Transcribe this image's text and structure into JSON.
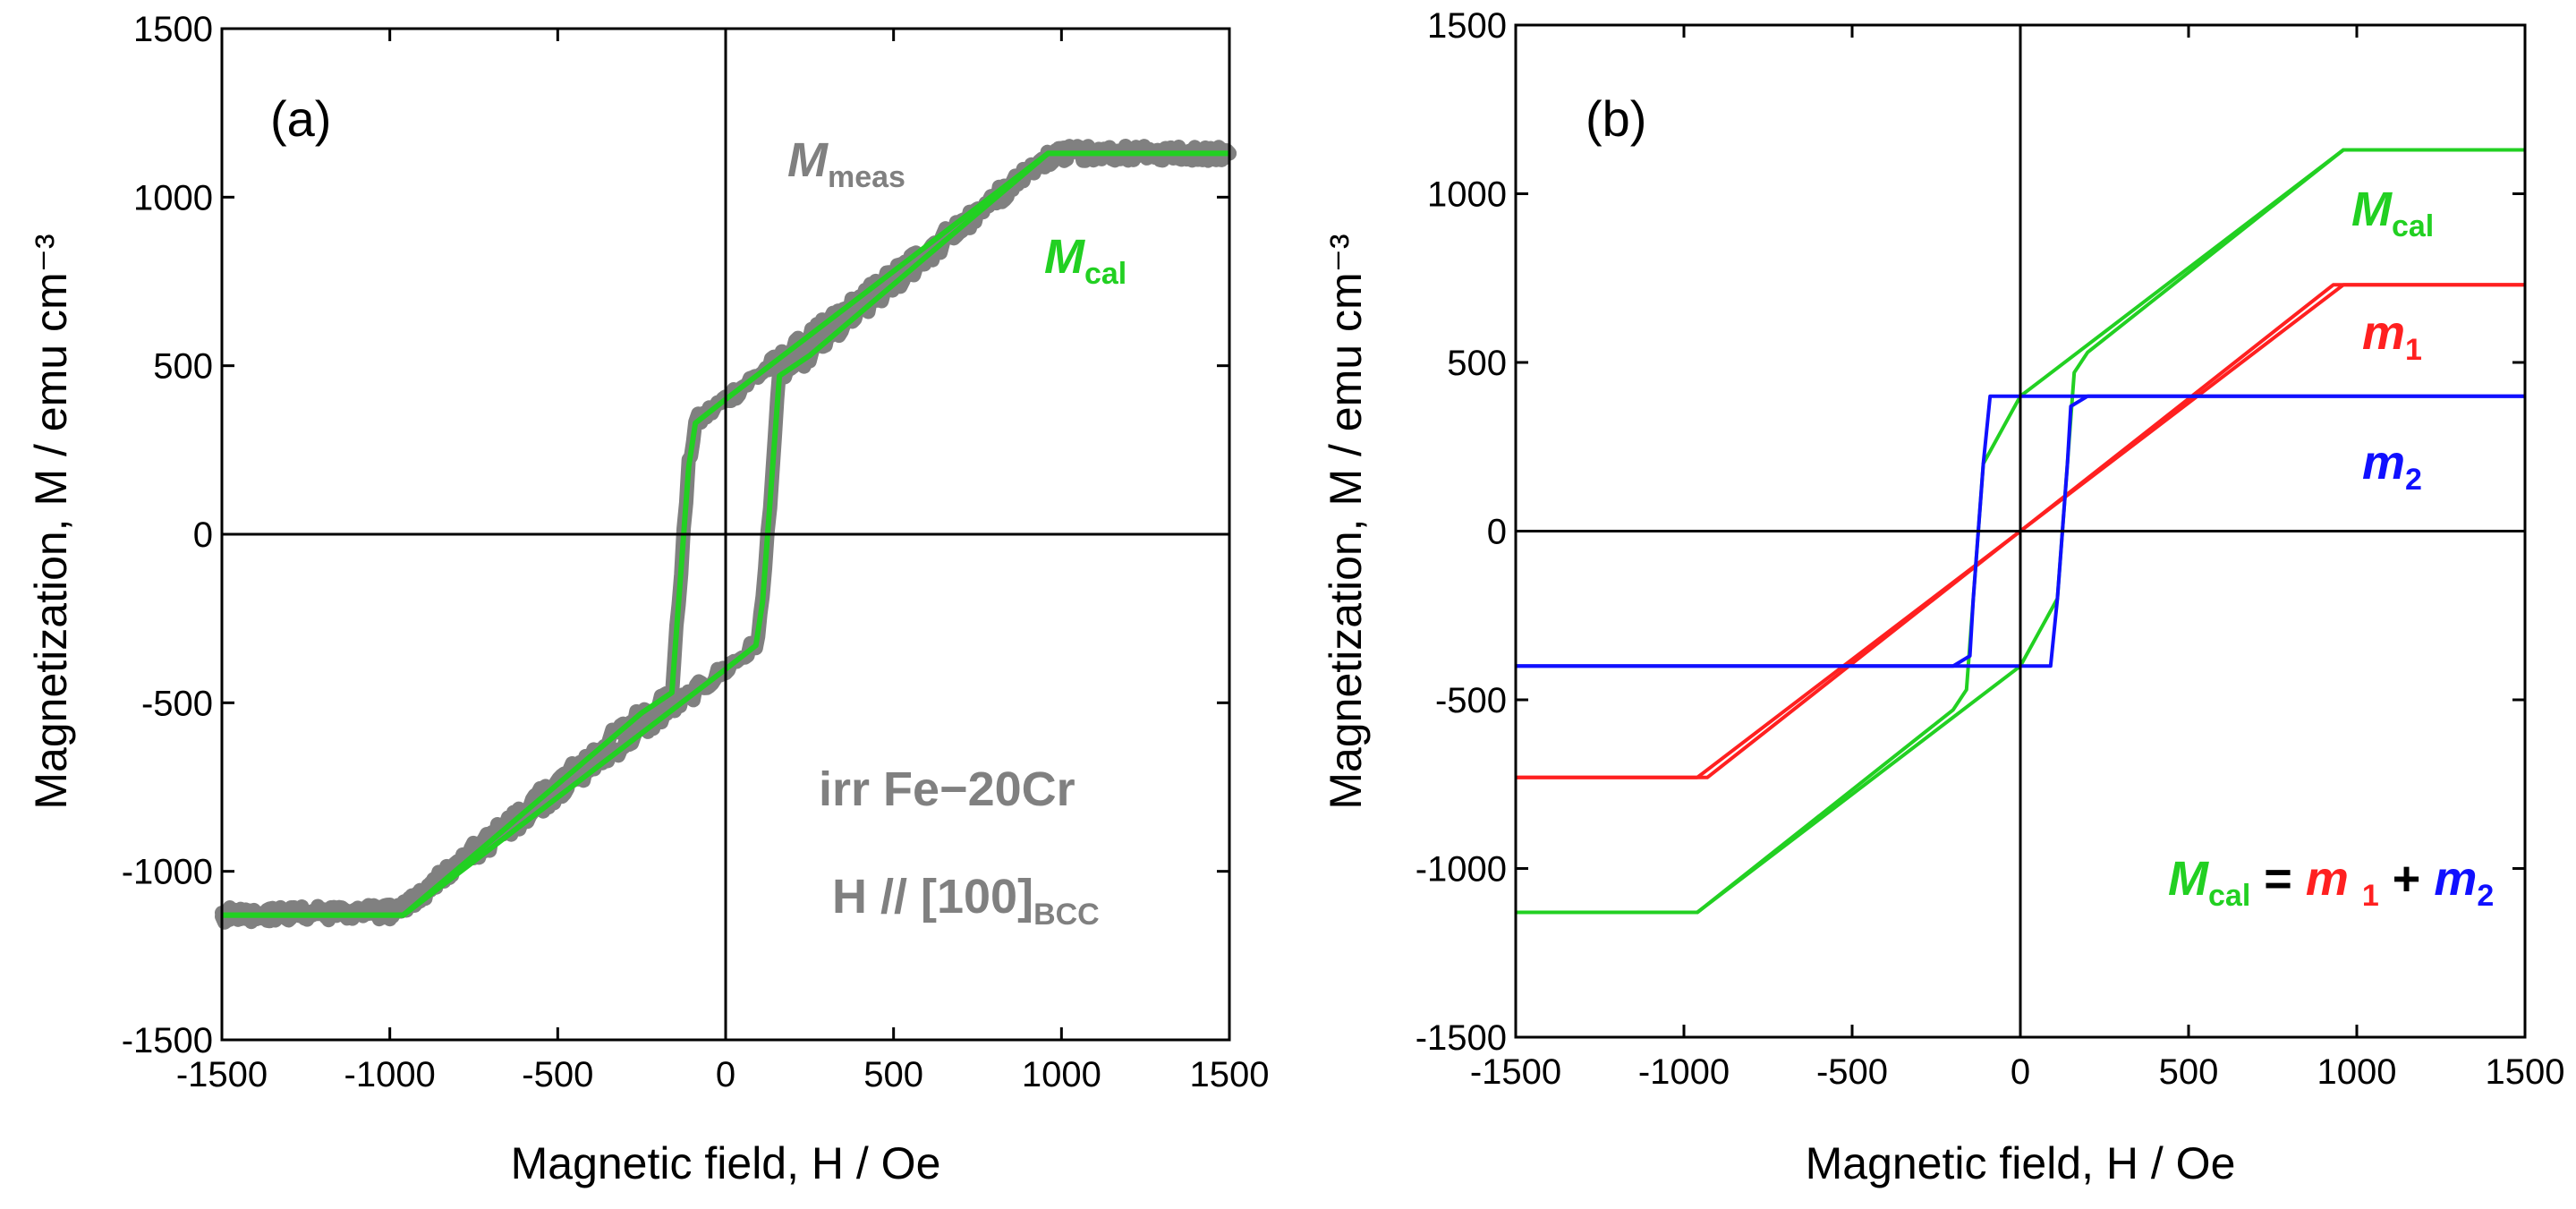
{
  "figure": {
    "colors": {
      "meas": "#808080",
      "cal": "#22d022",
      "m1": "#ff2020",
      "m2": "#1010ff",
      "axis": "#000000"
    },
    "panels": [
      {
        "label": "(a)",
        "xlabel": "Magnetic field, H / Oe",
        "ylabel": "Magnetization, M / emu cm⁻³",
        "annotations": {
          "meas_label": {
            "main": "M",
            "sub": "meas"
          },
          "cal_label": {
            "main": "M",
            "sub": "cal"
          },
          "sample_line1": "irr Fe−20Cr",
          "sample_line2_main": "H // [100]",
          "sample_line2_sub": "BCC"
        }
      },
      {
        "label": "(b)",
        "xlabel": "Magnetic field, H / Oe",
        "ylabel": "Magnetization, M / emu cm⁻³",
        "annotations": {
          "cal_label": {
            "main": "M",
            "sub": "cal"
          },
          "m1_label": {
            "main": "m",
            "sub": "1"
          },
          "m2_label": {
            "main": "m",
            "sub": "2"
          },
          "equation": {
            "lhs_main": "M",
            "lhs_sub": "cal",
            "eq": " = ",
            "t1_main": "m ",
            "t1_sub": "1",
            "plus": " + ",
            "t2_main": "m",
            "t2_sub": "2"
          }
        }
      }
    ]
  },
  "chart_data": [
    {
      "type": "line",
      "title": "(a)",
      "xlabel": "Magnetic field, H / Oe",
      "ylabel": "Magnetization, M / emu cm⁻³",
      "xlim": [
        -1500,
        1500
      ],
      "ylim": [
        -1500,
        1500
      ],
      "xticks": [
        -1500,
        -1000,
        -500,
        0,
        500,
        1000,
        1500
      ],
      "yticks": [
        -1500,
        -1000,
        -500,
        0,
        500,
        1000,
        1500
      ],
      "xtick_labels": [
        "-1500",
        "-1000",
        "-500",
        "0",
        "500",
        "1000",
        "1500"
      ],
      "ytick_labels": [
        "-1500",
        "-1000",
        "-500",
        "0",
        "500",
        "1000",
        "1500"
      ],
      "series": [
        {
          "name": "M_meas",
          "color": "#808080",
          "style": "thick-noisy",
          "branches": [
            {
              "x": [
                -1500,
                -1000,
                -950,
                -250,
                -160,
                -140,
                -125,
                -110,
                -90,
                0,
                950,
                1000,
                1500
              ],
              "y": [
                -1130,
                -1120,
                -1100,
                -530,
                -470,
                -200,
                0,
                200,
                330,
                400,
                1110,
                1130,
                1130
              ]
            },
            {
              "x": [
                -1500,
                -1000,
                -950,
                0,
                90,
                110,
                125,
                140,
                160,
                250,
                950,
                1000,
                1500
              ],
              "y": [
                -1130,
                -1120,
                -1100,
                -400,
                -330,
                -200,
                0,
                200,
                470,
                530,
                1110,
                1130,
                1130
              ]
            }
          ]
        },
        {
          "name": "M_cal",
          "color": "#22d022",
          "style": "line",
          "branches": [
            {
              "x": [
                -1500,
                -960,
                -250,
                -160,
                -140,
                -125,
                -110,
                -90,
                0,
                960,
                1500
              ],
              "y": [
                -1130,
                -1130,
                -530,
                -470,
                -200,
                0,
                200,
                330,
                400,
                1130,
                1130
              ]
            },
            {
              "x": [
                -1500,
                -960,
                0,
                90,
                110,
                125,
                140,
                160,
                250,
                960,
                1500
              ],
              "y": [
                -1130,
                -1130,
                -400,
                -330,
                -200,
                0,
                200,
                470,
                530,
                1130,
                1130
              ]
            }
          ]
        }
      ]
    },
    {
      "type": "line",
      "title": "(b)",
      "xlabel": "Magnetic field, H / Oe",
      "ylabel": "Magnetization, M / emu cm⁻³",
      "xlim": [
        -1500,
        1500
      ],
      "ylim": [
        -1500,
        1500
      ],
      "xticks": [
        -1500,
        -1000,
        -500,
        0,
        500,
        1000,
        1500
      ],
      "yticks": [
        -1500,
        -1000,
        -500,
        0,
        500,
        1000,
        1500
      ],
      "xtick_labels": [
        "-1500",
        "-1000",
        "-500",
        "0",
        "500",
        "1000",
        "1500"
      ],
      "ytick_labels": [
        "-1500",
        "-1000",
        "-500",
        "0",
        "500",
        "1000",
        "1500"
      ],
      "series": [
        {
          "name": "M_cal",
          "color": "#22d022",
          "style": "line",
          "branches": [
            {
              "x": [
                -1500,
                -960,
                -200,
                -160,
                -140,
                -125,
                -110,
                0,
                960,
                1500
              ],
              "y": [
                -1130,
                -1130,
                -530,
                -470,
                -200,
                0,
                200,
                400,
                1130,
                1130
              ]
            },
            {
              "x": [
                -1500,
                -960,
                0,
                110,
                125,
                140,
                160,
                200,
                960,
                1500
              ],
              "y": [
                -1130,
                -1130,
                -400,
                -200,
                0,
                200,
                470,
                530,
                1130,
                1130
              ]
            }
          ]
        },
        {
          "name": "m1",
          "color": "#ff2020",
          "style": "line",
          "branches": [
            {
              "x": [
                -1500,
                -960,
                960,
                1500
              ],
              "y": [
                -730,
                -730,
                730,
                730
              ]
            },
            {
              "x": [
                -1500,
                -930,
                930,
                1500
              ],
              "y": [
                -730,
                -730,
                730,
                730
              ]
            }
          ]
        },
        {
          "name": "m2",
          "color": "#1010ff",
          "style": "line",
          "branches": [
            {
              "x": [
                -1500,
                -200,
                -150,
                -140,
                -125,
                -110,
                -90,
                1500
              ],
              "y": [
                -400,
                -400,
                -370,
                -200,
                0,
                200,
                400,
                400
              ]
            },
            {
              "x": [
                -1500,
                90,
                110,
                125,
                140,
                150,
                200,
                1500
              ],
              "y": [
                -400,
                -400,
                -200,
                0,
                200,
                370,
                400,
                400
              ]
            }
          ]
        }
      ]
    }
  ]
}
